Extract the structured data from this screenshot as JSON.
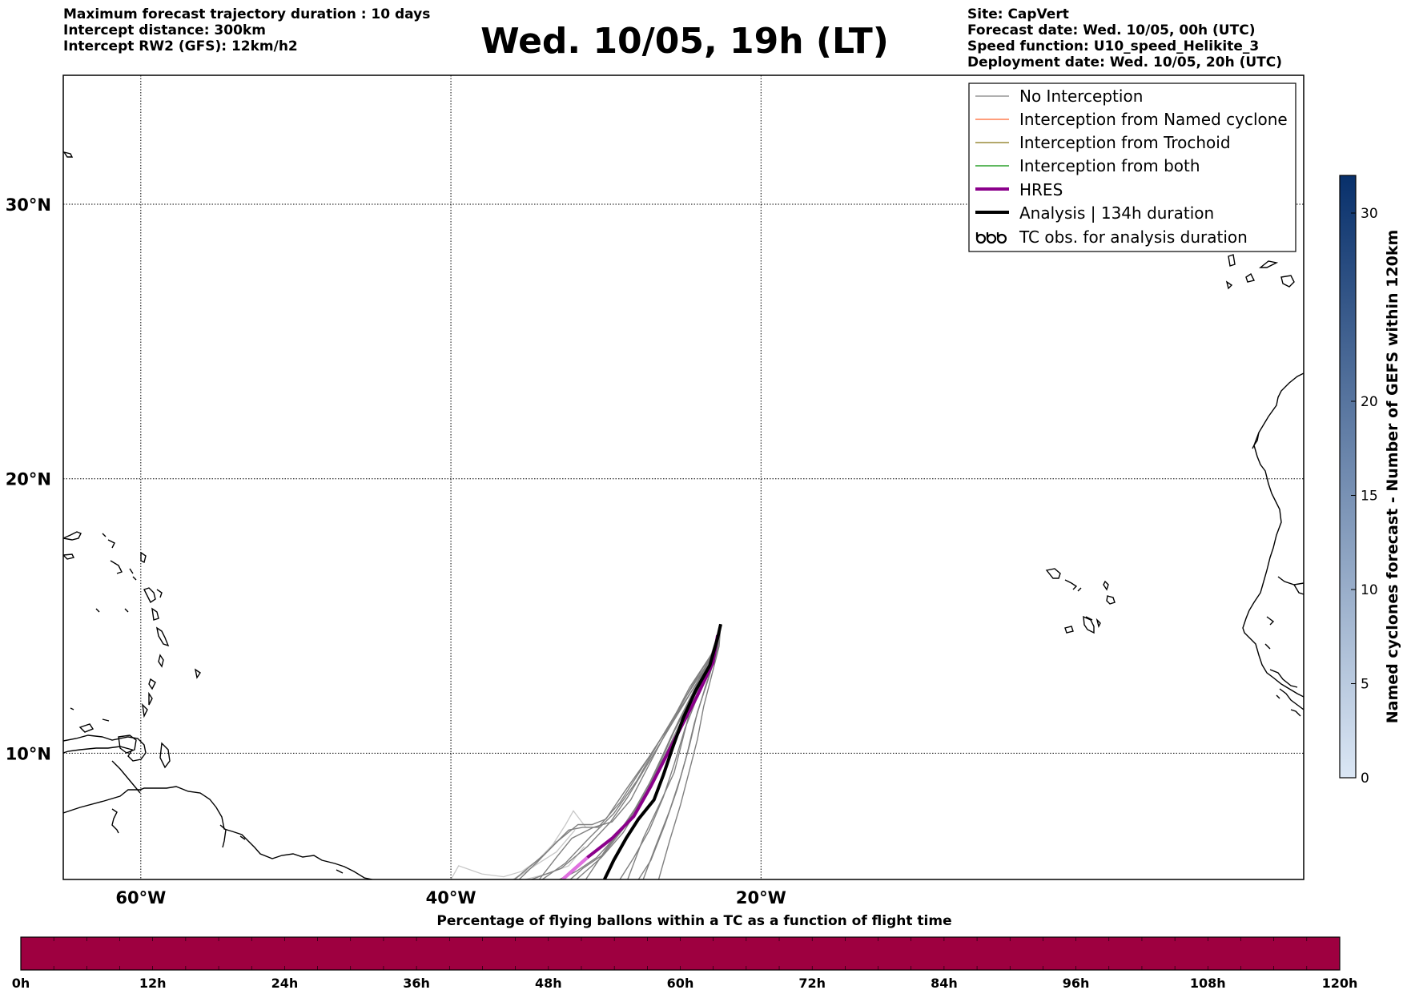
{
  "header_left": [
    "Maximum forecast trajectory duration : 10 days",
    "Intercept distance: 300km",
    "Intercept RW2 (GFS):  12km/h2"
  ],
  "title": "Wed. 10/05, 19h (LT)",
  "header_right": [
    "Site: CapVert",
    "Forecast date: Wed. 10/05, 00h (UTC)",
    "Speed function: U10_speed_Helikite_3",
    "Deployment date: Wed. 10/05, 20h (UTC)"
  ],
  "map": {
    "lon_range": [
      -65,
      15
    ],
    "lat_range": [
      5.4,
      34.7
    ],
    "lon_ticks": [
      {
        "value": -60,
        "label": "60°W"
      },
      {
        "value": -40,
        "label": "40°W"
      },
      {
        "value": -20,
        "label": "20°W"
      }
    ],
    "lat_ticks": [
      {
        "value": 30,
        "label": "30°N"
      },
      {
        "value": 20,
        "label": "20°N"
      },
      {
        "value": 10,
        "label": "10°N"
      }
    ],
    "grid": true
  },
  "legend": {
    "location": "upper right",
    "items": [
      {
        "label": "No Interception",
        "color": "#808080"
      },
      {
        "label": "Interception from Named cyclone",
        "color": "#ff7f50"
      },
      {
        "label": "Interception from Trochoid",
        "color": "#9a8b3a"
      },
      {
        "label": "Interception from both",
        "color": "#2ca02c"
      },
      {
        "label": "HRES",
        "color": "#8b008b"
      },
      {
        "label": "Analysis | 134h duration",
        "color": "#000000"
      },
      {
        "label": "TC obs. for analysis duration",
        "color": "#000000",
        "icon": "tc-symbol-icon"
      }
    ]
  },
  "colorbar_vertical": {
    "title": "Named cyclones forecast - Number of GEFS within 120km",
    "min": 0,
    "max": 32,
    "ticks": [
      {
        "value": 0,
        "label": "0"
      },
      {
        "value": 5,
        "label": "5"
      },
      {
        "value": 10,
        "label": "10"
      },
      {
        "value": 15,
        "label": "15"
      },
      {
        "value": 20,
        "label": "20"
      },
      {
        "value": 30,
        "label": "30"
      }
    ],
    "color_low": "#dbe7f5",
    "color_high": "#08306b"
  },
  "colorbar_horizontal": {
    "title": "Percentage of flying ballons within a TC as a function of flight time",
    "ticks": [
      "0h",
      "12h",
      "24h",
      "36h",
      "48h",
      "60h",
      "72h",
      "84h",
      "96h",
      "108h",
      "120h"
    ],
    "color": "#9e0040"
  },
  "tracks": {
    "origin": {
      "lon": -22.6,
      "lat": 14.7
    },
    "analysis": [
      [
        -22.6,
        14.7
      ],
      [
        -22.8,
        14.2
      ],
      [
        -23.3,
        13.2
      ],
      [
        -24.2,
        12.3
      ],
      [
        -25.0,
        11.3
      ],
      [
        -25.7,
        10.2
      ],
      [
        -26.3,
        9.2
      ],
      [
        -26.9,
        8.3
      ],
      [
        -27.9,
        7.6
      ],
      [
        -28.7,
        6.9
      ],
      [
        -29.5,
        6.1
      ],
      [
        -30.1,
        5.4
      ]
    ],
    "hres": [
      [
        -22.8,
        14.3
      ],
      [
        -23.1,
        13.3
      ],
      [
        -24.1,
        12.1
      ],
      [
        -25.2,
        10.9
      ],
      [
        -26.2,
        9.8
      ],
      [
        -27.1,
        8.8
      ],
      [
        -28.2,
        7.7
      ],
      [
        -29.6,
        6.9
      ],
      [
        -31.2,
        6.2
      ],
      [
        -32.8,
        5.4
      ]
    ],
    "ensemble": [
      [
        [
          -22.6,
          14.7
        ],
        [
          -23.0,
          13.8
        ],
        [
          -24.1,
          12.6
        ],
        [
          -25.4,
          11.4
        ],
        [
          -27.0,
          9.9
        ],
        [
          -28.6,
          8.4
        ],
        [
          -29.7,
          7.5
        ],
        [
          -31.2,
          6.6
        ],
        [
          -32.9,
          5.8
        ],
        [
          -34.8,
          5.4
        ]
      ],
      [
        [
          -22.6,
          14.7
        ],
        [
          -23.2,
          13.6
        ],
        [
          -24.6,
          12.4
        ],
        [
          -25.9,
          11.0
        ],
        [
          -27.2,
          9.6
        ],
        [
          -28.4,
          8.3
        ],
        [
          -29.6,
          7.5
        ],
        [
          -30.8,
          7.3
        ],
        [
          -32.2,
          6.9
        ],
        [
          -33.2,
          6.2
        ],
        [
          -34.3,
          5.4
        ]
      ],
      [
        [
          -22.6,
          14.7
        ],
        [
          -23.1,
          13.5
        ],
        [
          -24.3,
          12.3
        ],
        [
          -25.3,
          11.2
        ],
        [
          -26.2,
          10.1
        ],
        [
          -27.2,
          8.9
        ],
        [
          -28.5,
          7.6
        ],
        [
          -30.0,
          6.5
        ],
        [
          -31.3,
          5.4
        ]
      ],
      [
        [
          -22.6,
          14.7
        ],
        [
          -22.9,
          13.7
        ],
        [
          -23.8,
          12.6
        ],
        [
          -24.6,
          11.5
        ],
        [
          -25.1,
          10.4
        ],
        [
          -25.6,
          9.3
        ],
        [
          -26.5,
          8.2
        ],
        [
          -27.6,
          6.9
        ],
        [
          -28.6,
          5.4
        ]
      ],
      [
        [
          -22.6,
          14.7
        ],
        [
          -22.8,
          13.8
        ],
        [
          -23.4,
          12.7
        ],
        [
          -24.1,
          11.5
        ],
        [
          -24.6,
          10.3
        ],
        [
          -25.2,
          9.1
        ],
        [
          -25.9,
          7.9
        ],
        [
          -26.8,
          6.6
        ],
        [
          -27.6,
          5.4
        ]
      ],
      [
        [
          -22.6,
          14.7
        ],
        [
          -23.0,
          13.6
        ],
        [
          -24.2,
          12.3
        ],
        [
          -25.6,
          10.8
        ],
        [
          -26.7,
          9.4
        ],
        [
          -27.7,
          8.2
        ],
        [
          -28.9,
          7.1
        ],
        [
          -30.3,
          6.2
        ],
        [
          -31.9,
          5.4
        ]
      ],
      [
        [
          -22.6,
          14.7
        ],
        [
          -23.3,
          13.4
        ],
        [
          -24.9,
          12.0
        ],
        [
          -26.6,
          10.4
        ],
        [
          -28.0,
          9.0
        ],
        [
          -29.5,
          7.8
        ],
        [
          -31.1,
          6.9
        ],
        [
          -32.6,
          6.0
        ],
        [
          -34.1,
          5.4
        ]
      ],
      [
        [
          -22.6,
          14.7
        ],
        [
          -23.0,
          13.5
        ],
        [
          -24.0,
          12.2
        ],
        [
          -24.9,
          10.9
        ],
        [
          -25.6,
          9.6
        ],
        [
          -26.3,
          8.4
        ],
        [
          -27.2,
          7.2
        ],
        [
          -28.2,
          6.2
        ],
        [
          -29.1,
          5.4
        ]
      ],
      [
        [
          -22.6,
          14.7
        ],
        [
          -23.1,
          13.7
        ],
        [
          -24.4,
          12.5
        ],
        [
          -25.8,
          11.1
        ],
        [
          -27.3,
          9.8
        ],
        [
          -28.8,
          8.6
        ],
        [
          -30.0,
          7.6
        ],
        [
          -30.9,
          7.4
        ],
        [
          -31.8,
          7.4
        ],
        [
          -33.1,
          6.8
        ],
        [
          -34.5,
          6.0
        ],
        [
          -35.6,
          5.4
        ]
      ],
      [
        [
          -22.6,
          14.7
        ],
        [
          -22.7,
          13.9
        ],
        [
          -23.2,
          12.8
        ],
        [
          -23.7,
          11.7
        ],
        [
          -24.1,
          10.5
        ],
        [
          -24.6,
          9.4
        ],
        [
          -25.2,
          8.1
        ],
        [
          -25.9,
          6.8
        ],
        [
          -26.6,
          5.4
        ]
      ],
      [
        [
          -22.6,
          14.7
        ],
        [
          -23.2,
          13.5
        ],
        [
          -24.5,
          12.1
        ],
        [
          -25.8,
          10.6
        ],
        [
          -26.9,
          9.2
        ],
        [
          -28.1,
          8.0
        ],
        [
          -29.3,
          7.0
        ],
        [
          -30.6,
          6.2
        ],
        [
          -31.9,
          5.7
        ],
        [
          -33.0,
          5.4
        ]
      ],
      [
        [
          -22.6,
          14.7
        ],
        [
          -22.9,
          13.6
        ],
        [
          -23.6,
          12.4
        ],
        [
          -24.3,
          11.1
        ],
        [
          -24.8,
          9.9
        ],
        [
          -25.4,
          8.7
        ],
        [
          -26.2,
          7.4
        ],
        [
          -27.1,
          6.1
        ],
        [
          -27.9,
          5.4
        ]
      ],
      [
        [
          -22.6,
          14.7
        ],
        [
          -23.1,
          13.6
        ],
        [
          -24.2,
          12.5
        ],
        [
          -25.7,
          11.2
        ],
        [
          -27.4,
          9.7
        ],
        [
          -29.1,
          8.2
        ],
        [
          -30.5,
          7.3
        ],
        [
          -31.5,
          7.3
        ],
        [
          -32.4,
          7.2
        ],
        [
          -34.0,
          6.3
        ],
        [
          -35.9,
          5.4
        ]
      ],
      [
        [
          -22.6,
          14.7
        ],
        [
          -23.0,
          13.6
        ],
        [
          -24.0,
          12.4
        ],
        [
          -25.2,
          11.1
        ],
        [
          -26.3,
          9.8
        ],
        [
          -27.4,
          8.6
        ],
        [
          -28.8,
          7.3
        ],
        [
          -30.2,
          6.3
        ],
        [
          -31.5,
          5.8
        ],
        [
          -32.3,
          5.4
        ]
      ]
    ],
    "faded": [
      [
        [
          -31.4,
          6.6
        ],
        [
          -32.4,
          5.9
        ],
        [
          -33.8,
          5.6
        ],
        [
          -35.2,
          5.4
        ]
      ],
      [
        [
          -32.0,
          7.2
        ],
        [
          -33.2,
          6.4
        ],
        [
          -34.6,
          5.9
        ],
        [
          -36.0,
          5.4
        ]
      ],
      [
        [
          -33.2,
          6.8
        ],
        [
          -34.4,
          6.1
        ],
        [
          -35.4,
          5.7
        ],
        [
          -36.6,
          5.5
        ],
        [
          -38.0,
          5.6
        ],
        [
          -39.5,
          5.9
        ],
        [
          -40.0,
          5.4
        ]
      ],
      [
        [
          -30.6,
          7.3
        ],
        [
          -31.3,
          7.3
        ],
        [
          -32.1,
          7.9
        ],
        [
          -32.6,
          7.4
        ],
        [
          -33.4,
          6.7
        ],
        [
          -34.6,
          5.9
        ],
        [
          -35.9,
          5.4
        ]
      ]
    ],
    "hres_faded": [
      [
        -31.2,
        6.2
      ],
      [
        -32.0,
        5.8
      ],
      [
        -32.8,
        5.4
      ]
    ]
  }
}
